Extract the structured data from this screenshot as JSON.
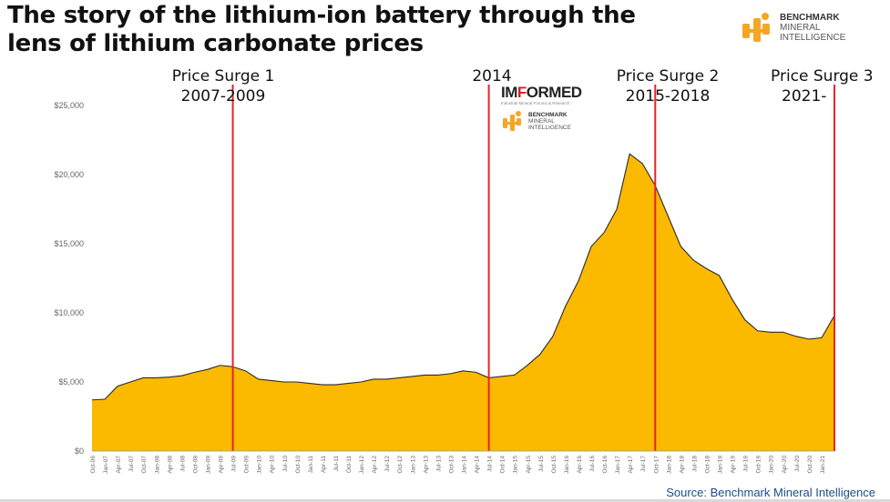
{
  "title_line1": "The story of the lithium-ion battery through the",
  "title_line2": "lens of lithium carbonate prices",
  "benchmark_logo": {
    "line1": "BENCHMARK",
    "line2": "MINERAL",
    "line3": "INTELLIGENCE"
  },
  "informed_logo": {
    "prefix": "IM",
    "accent": "F",
    "suffix": "ORMED",
    "tagline": "Industrial Mineral Forums & Research"
  },
  "source": "Source: Benchmark Mineral Intelligence",
  "colors": {
    "fill": "#fbb900",
    "outline": "#2a2a2a",
    "marker_line": "#e8232a",
    "accent_orange": "#f5a623"
  },
  "annotations": [
    {
      "line1": "Price Surge 1",
      "line2": "2007-2009"
    },
    {
      "line1": "2014",
      "line2": ""
    },
    {
      "line1": "Price Surge 2",
      "line2": "2015-2018"
    },
    {
      "line1": "Price Surge 3",
      "line2": "2021-"
    }
  ],
  "chart_data": {
    "type": "area",
    "title": "",
    "xlabel": "",
    "ylabel": "",
    "ylim": [
      0,
      25000
    ],
    "yticks": [
      "$0",
      "$5,000",
      "$10,000",
      "$15,000",
      "$20,000",
      "$25,000"
    ],
    "ytick_values": [
      0,
      5000,
      10000,
      15000,
      20000,
      25000
    ],
    "grid": false,
    "xtick_labels": [
      "Oct-06",
      "Jan-07",
      "Apr-07",
      "Jul-07",
      "Oct-07",
      "Jan-08",
      "Apr-08",
      "Jul-08",
      "Oct-08",
      "Jan-09",
      "Apr-09",
      "Jul-09",
      "Oct-09",
      "Jan-10",
      "Apr-10",
      "Jul-10",
      "Oct-10",
      "Jan-11",
      "Apr-11",
      "Jul-11",
      "Oct-11",
      "Jan-12",
      "Apr-12",
      "Jul-12",
      "Oct-12",
      "Jan-13",
      "Apr-13",
      "Jul-13",
      "Oct-13",
      "Jan-14",
      "Apr-14",
      "Jul-14",
      "Oct-14",
      "Jan-15",
      "Apr-15",
      "Jul-15",
      "Oct-15",
      "Jan-16",
      "Apr-16",
      "Jul-16",
      "Oct-16",
      "Jan-17",
      "Apr-17",
      "Jul-17",
      "Oct-17",
      "Jan-18",
      "Apr-18",
      "Jul-18",
      "Oct-18",
      "Jan-19",
      "Apr-19",
      "Jul-19",
      "Oct-19",
      "Jan-20",
      "Apr-20",
      "Jul-20",
      "Oct-20",
      "Jan-21"
    ],
    "series": [
      {
        "x": [
          "Oct-06",
          "Jan-07",
          "Apr-07",
          "Jul-07",
          "Oct-07",
          "Jan-08",
          "Apr-08",
          "Jul-08",
          "Oct-08",
          "Jan-09",
          "Apr-09",
          "Jul-09",
          "Oct-09",
          "Jan-10",
          "Apr-10",
          "Jul-10",
          "Oct-10",
          "Jan-11",
          "Apr-11",
          "Jul-11",
          "Oct-11",
          "Jan-12",
          "Apr-12",
          "Jul-12",
          "Oct-12",
          "Jan-13",
          "Apr-13",
          "Jul-13",
          "Oct-13",
          "Jan-14",
          "Apr-14",
          "Jul-14",
          "Oct-14",
          "Jan-15",
          "Apr-15",
          "Jul-15",
          "Oct-15",
          "Jan-16",
          "Apr-16",
          "Jul-16",
          "Oct-16",
          "Jan-17",
          "Apr-17",
          "Jul-17",
          "Oct-17",
          "Jan-18",
          "Apr-18",
          "Jul-18",
          "Oct-18",
          "Jan-19",
          "Apr-19",
          "Jul-19",
          "Oct-19",
          "Jan-20",
          "Apr-20",
          "Jul-20",
          "Oct-20",
          "Jan-21",
          "Apr-21"
        ],
        "values": [
          3700,
          3750,
          4700,
          5000,
          5300,
          5300,
          5350,
          5450,
          5700,
          5900,
          6200,
          6100,
          5800,
          5200,
          5100,
          5000,
          5000,
          4900,
          4800,
          4800,
          4900,
          5000,
          5200,
          5200,
          5300,
          5400,
          5500,
          5500,
          5600,
          5800,
          5700,
          5300,
          5400,
          5500,
          6200,
          7000,
          8300,
          10500,
          12300,
          14800,
          15800,
          17500,
          21500,
          20800,
          19200,
          17000,
          14800,
          13800,
          13200,
          12700,
          11000,
          9500,
          8700,
          8600,
          8600,
          8300,
          8100,
          8200,
          9800
        ]
      }
    ],
    "markers": [
      "Jul-09",
      "Jul-14",
      "Oct-17",
      "Apr-21"
    ]
  }
}
